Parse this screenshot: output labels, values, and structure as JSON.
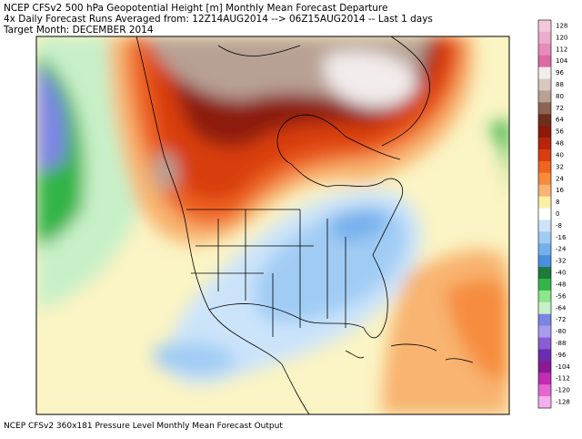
{
  "header": {
    "lines": [
      "NCEP CFSv2 500 hPa Geopotential Height [m] Monthly Mean Forecast Departure",
      "4x Daily Forecast Runs Averaged from: 12Z14AUG2014 --> 06Z15AUG2014 -- Last 1 days",
      "Target Month: DECEMBER 2014"
    ]
  },
  "footer": "NCEP CFSv2 360x181 Pressure Level Monthly Mean Forecast Output",
  "colorbar": {
    "labels": [
      128,
      120,
      112,
      104,
      96,
      88,
      80,
      72,
      64,
      56,
      48,
      40,
      32,
      24,
      16,
      8,
      0,
      -8,
      -16,
      -24,
      -32,
      -40,
      -48,
      -56,
      -64,
      -72,
      -80,
      -88,
      -96,
      -104,
      -112,
      -120,
      -128
    ],
    "colors": [
      "#f4c8dc",
      "#ecaccc",
      "#e68cba",
      "#dc6aa4",
      "#f2ecec",
      "#d8c8c0",
      "#b8a094",
      "#8c6452",
      "#6e2e1e",
      "#8c1a0a",
      "#b8240c",
      "#d83c10",
      "#ee6420",
      "#f68c3c",
      "#f8b470",
      "#faf0a4",
      "#ffffff",
      "#cce4fa",
      "#a0ccf4",
      "#74b0ec",
      "#4a8ee0",
      "#1c7a3c",
      "#32b446",
      "#8ce68c",
      "#c8f0c8",
      "#7c84e4",
      "#a89cf0",
      "#8c5cd4",
      "#6a2cb0",
      "#8c1a94",
      "#c02cb4",
      "#e466d0",
      "#f4b0ea"
    ]
  }
}
